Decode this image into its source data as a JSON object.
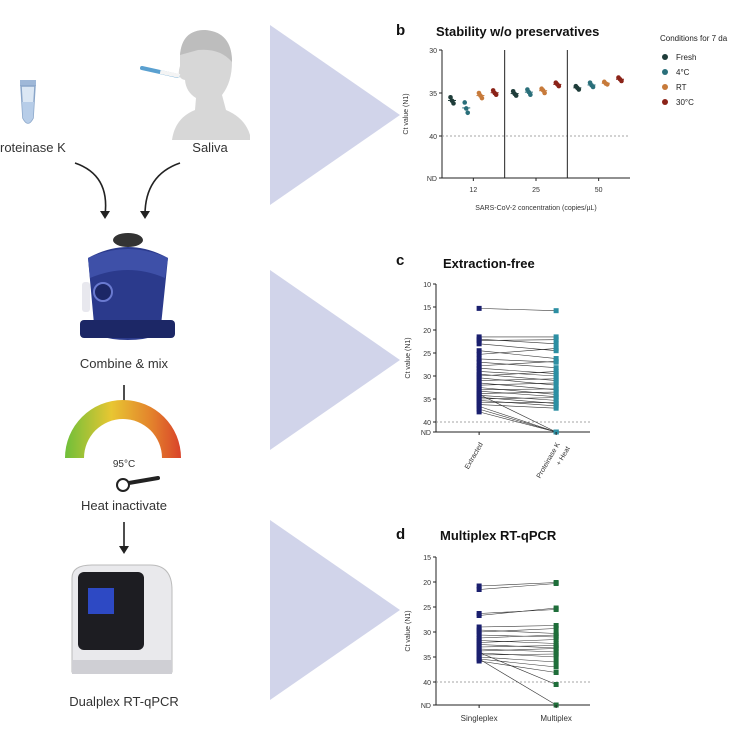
{
  "workflow": {
    "proteinase_label": "roteinase K",
    "saliva_label": "Saliva",
    "combine_label": "Combine & mix",
    "temp_label": "95°C",
    "heat_label": "Heat inactivate",
    "dualplex_label": "Dualplex RT-qPCR"
  },
  "colors": {
    "fresh": "#1f3d3a",
    "c4": "#2a6f7a",
    "rt": "#c77a3a",
    "c30": "#8b2318",
    "extracted": "#1a1f6e",
    "proteinase": "#2c8fa3",
    "singleplex": "#1a1f6e",
    "multiplex": "#1f6e3a",
    "vortex": "#2b3a8c",
    "wedge": "#c9cce6"
  },
  "chart_data": [
    {
      "panel": "b",
      "type": "scatter",
      "title": "Stability w/o preservatives",
      "xlabel": "SARS-CoV-2 concentration (copies/µL)",
      "ylabel": "Ct value (N1)",
      "y_ticks": [
        "30",
        "35",
        "40",
        "ND"
      ],
      "categories": [
        "12",
        "25",
        "50"
      ],
      "legend_title": "Conditions for 7 da",
      "legend": [
        "Fresh",
        "4°C",
        "RT",
        "30°C"
      ],
      "legend_position": "right",
      "grid": false,
      "series": [
        {
          "name": "Fresh",
          "values": [
            [
              35.5,
              35.9,
              36.2
            ],
            [
              34.8,
              35.1,
              35.3
            ],
            [
              34.2,
              34.4,
              34.6
            ]
          ]
        },
        {
          "name": "4°C",
          "values": [
            [
              36.1,
              36.8,
              37.3
            ],
            [
              34.6,
              34.9,
              35.2
            ],
            [
              33.8,
              34.1,
              34.3
            ]
          ]
        },
        {
          "name": "RT",
          "values": [
            [
              35.0,
              35.3,
              35.6
            ],
            [
              34.5,
              34.7,
              35.0
            ],
            [
              33.7,
              33.9,
              34.0
            ]
          ]
        },
        {
          "name": "30°C",
          "values": [
            [
              34.7,
              35.0,
              35.2
            ],
            [
              33.8,
              34.0,
              34.2
            ],
            [
              33.2,
              33.4,
              33.6
            ]
          ]
        }
      ]
    },
    {
      "panel": "c",
      "type": "scatter",
      "title": "Extraction-free",
      "ylabel": "Ct value (N1)",
      "y_ticks": [
        "10",
        "15",
        "20",
        "25",
        "30",
        "35",
        "40",
        "ND"
      ],
      "categories": [
        "Extracted",
        "Proteinase K + Heat"
      ],
      "grid": false,
      "pairs": [
        [
          15.3,
          15.8
        ],
        [
          21.5,
          21.5
        ],
        [
          22.0,
          23.0
        ],
        [
          22.3,
          22.1
        ],
        [
          23.0,
          24.5
        ],
        [
          24.5,
          26.2
        ],
        [
          25.3,
          24.0
        ],
        [
          26.3,
          27.0
        ],
        [
          27.0,
          28.2
        ],
        [
          27.8,
          26.8
        ],
        [
          28.3,
          29.5
        ],
        [
          29.0,
          30.0
        ],
        [
          29.6,
          31.0
        ],
        [
          30.0,
          29.0
        ],
        [
          30.4,
          32.0
        ],
        [
          31.0,
          30.6
        ],
        [
          31.5,
          33.0
        ],
        [
          32.0,
          31.5
        ],
        [
          32.5,
          34.0
        ],
        [
          33.0,
          32.8
        ],
        [
          33.3,
          34.5
        ],
        [
          33.8,
          33.5
        ],
        [
          34.2,
          35.3
        ],
        [
          34.6,
          36.0
        ],
        [
          35.0,
          34.7
        ],
        [
          35.3,
          36.5
        ],
        [
          35.7,
          35.8
        ],
        [
          36.2,
          37.0
        ],
        [
          36.6,
          "ND"
        ],
        [
          37.2,
          "ND"
        ],
        [
          37.8,
          "ND"
        ],
        [
          34.0,
          "ND"
        ]
      ]
    },
    {
      "panel": "d",
      "type": "scatter",
      "title": "Multiplex RT-qPCR",
      "ylabel": "Ct value (N1)",
      "y_ticks": [
        "15",
        "20",
        "25",
        "30",
        "35",
        "40",
        "ND"
      ],
      "categories": [
        "Singleplex",
        "Multiplex"
      ],
      "grid": false,
      "pairs": [
        [
          20.8,
          20.1
        ],
        [
          21.5,
          20.3
        ],
        [
          26.3,
          25.5
        ],
        [
          26.7,
          25.2
        ],
        [
          29.0,
          28.7
        ],
        [
          29.6,
          30.3
        ],
        [
          30.0,
          29.3
        ],
        [
          30.6,
          31.0
        ],
        [
          31.2,
          30.6
        ],
        [
          31.7,
          32.3
        ],
        [
          32.1,
          31.5
        ],
        [
          32.5,
          33.2
        ],
        [
          33.0,
          32.7
        ],
        [
          33.4,
          34.0
        ],
        [
          33.8,
          33.3
        ],
        [
          34.2,
          35.0
        ],
        [
          34.6,
          34.4
        ],
        [
          35.0,
          36.0
        ],
        [
          35.4,
          37.0
        ],
        [
          35.8,
          38.1
        ],
        [
          34.1,
          40.5
        ],
        [
          35.4,
          "ND"
        ]
      ]
    }
  ]
}
